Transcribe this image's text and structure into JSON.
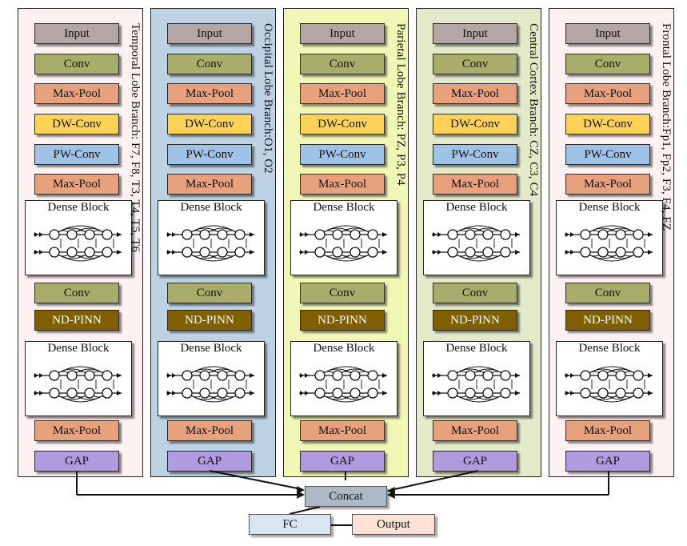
{
  "colors": {
    "input": "#b5a6a6",
    "conv": "#a8ad6c",
    "maxpool": "#e7a17c",
    "dwconv": "#fcd357",
    "pwconv": "#9fc3e6",
    "ndpinn": "#7f5f00",
    "gap": "#b09bde",
    "concat": "#aeb9c8",
    "fc": "#dae5f2",
    "output": "#fbe2d4"
  },
  "branches": [
    {
      "label": "Temporal Lobe Branch: F7, F8, T3, T4, T5, T6",
      "bg": "#fdf1f1",
      "blocks": [
        "Input",
        "Conv",
        "Max-Pool",
        "DW-Conv",
        "PW-Conv",
        "Max-Pool",
        "Conv",
        "ND-PINN",
        "Max-Pool",
        "GAP"
      ],
      "dense1": "Dense Block",
      "dense2": "Dense Block"
    },
    {
      "label": "Occipital Lobe Branch:O1, O2",
      "bg": "#bdd3e3",
      "blocks": [
        "Input",
        "Conv",
        "Max-Pool",
        "DW-Conv",
        "PW-Conv",
        "Max-Pool",
        "Conv",
        "ND-PINN",
        "Max-Pool",
        "GAP"
      ],
      "dense1": "Dense Block",
      "dense2": "Dense Block"
    },
    {
      "label": "Parietal Lobe Branch: PZ, P3, P4",
      "bg": "#f1f7b4",
      "blocks": [
        "Input",
        "Conv",
        "Max-Pool",
        "DW-Conv",
        "PW-Conv",
        "Max-Pool",
        "Conv",
        "ND-PINN",
        "Max-Pool",
        "GAP"
      ],
      "dense1": "Dense Block",
      "dense2": "Dense Block"
    },
    {
      "label": "Central Cortex Branch: CZ, C3, C4",
      "bg": "#e3e9c9",
      "blocks": [
        "Input",
        "Conv",
        "Max-Pool",
        "DW-Conv",
        "PW-Conv",
        "Max-Pool",
        "Conv",
        "ND-PINN",
        "Max-Pool",
        "GAP"
      ],
      "dense1": "Dense Block",
      "dense2": "Dense Block"
    },
    {
      "label": "Frontal Lobe Branch:Fp1, Fp2, F3, F4, FZ",
      "bg": "#fdf1f1",
      "blocks": [
        "Input",
        "Conv",
        "Max-Pool",
        "DW-Conv",
        "PW-Conv",
        "Max-Pool",
        "Conv",
        "ND-PINN",
        "Max-Pool",
        "GAP"
      ],
      "dense1": "Dense Block",
      "dense2": "Dense Block"
    }
  ],
  "concat": "Concat",
  "fc": "FC",
  "output": "Output"
}
